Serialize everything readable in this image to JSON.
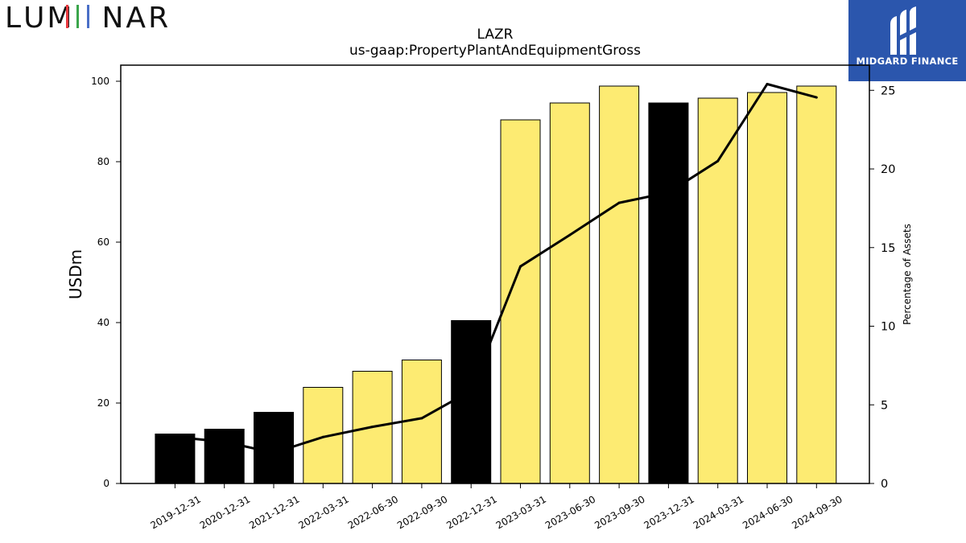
{
  "logos": {
    "left_text": "LUMINAR",
    "left_letters": [
      "L",
      "U",
      "M",
      "I",
      "N",
      "A",
      "R"
    ],
    "left_letter_colors": [
      "#111111",
      "#111111",
      "#111111",
      "#e8383d",
      "#111111",
      "#111111",
      "#111111"
    ],
    "left_accent_colors": [
      "#e8383d",
      "#3aa54b",
      "#4a6fc7"
    ],
    "right_text": "MIDGARD FINANCE",
    "right_bg": "#2b56ad"
  },
  "chart_data": {
    "type": "bar",
    "title": "LAZR",
    "subtitle": "us-gaap:PropertyPlantAndEquipmentGross",
    "ylabel": "USDm",
    "y2label": "Percentage of Assets",
    "ylim": [
      0,
      104
    ],
    "y2lim": [
      0,
      26.6
    ],
    "yticks": [
      0,
      20,
      40,
      60,
      80,
      100
    ],
    "y2ticks": [
      0,
      5,
      10,
      15,
      20,
      25
    ],
    "categories": [
      "2019-12-31",
      "2020-12-31",
      "2021-12-31",
      "2022-03-31",
      "2022-06-30",
      "2022-09-30",
      "2022-12-31",
      "2023-03-31",
      "2023-06-30",
      "2023-09-30",
      "2023-12-31",
      "2024-03-31",
      "2024-06-30",
      "2024-09-30"
    ],
    "series": [
      {
        "kind": "bar",
        "values": [
          12.3,
          13.5,
          17.7,
          23.9,
          27.9,
          30.7,
          40.5,
          90.4,
          94.6,
          98.8,
          94.6,
          95.8,
          97.2,
          98.8
        ],
        "colors": [
          "#000000",
          "#000000",
          "#000000",
          "#fdeb72",
          "#fdeb72",
          "#fdeb72",
          "#000000",
          "#fdeb72",
          "#fdeb72",
          "#fdeb72",
          "#000000",
          "#fdeb72",
          "#fdeb72",
          "#fdeb72"
        ]
      },
      {
        "kind": "line",
        "axis": "right",
        "values": [
          2.95,
          2.65,
          1.95,
          2.95,
          3.6,
          4.15,
          5.9,
          13.8,
          15.8,
          17.85,
          18.5,
          20.5,
          25.4,
          24.55
        ],
        "color": "#000000"
      }
    ],
    "grid": false,
    "legend": "none"
  }
}
